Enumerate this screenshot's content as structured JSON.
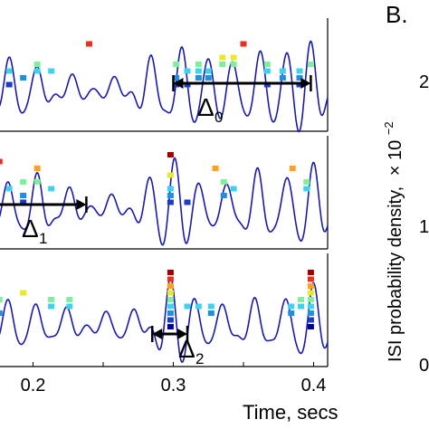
{
  "chart_data": {
    "type": "line",
    "panel_letter": "B.",
    "xlabel": "Time, secs",
    "ylabel": "ISI probability density,",
    "ylabel_multiplier": "× 10",
    "ylabel_exponent": "−2",
    "x_ticks": [
      "0.2",
      "0.3",
      "0.4"
    ],
    "right_y_ticks": [
      "2",
      "1",
      "0"
    ],
    "xlim": [
      0.17,
      0.41
    ],
    "colors": {
      "trace": "#1a1aa8",
      "arrow": "#000000",
      "frame": "#000000"
    },
    "marker_colormap": [
      "#00008f",
      "#1c3cc8",
      "#1f8fe0",
      "#3fd2f0",
      "#7ff09a",
      "#e6ea2c",
      "#ffa020",
      "#e8321c",
      "#a00000"
    ],
    "panels": [
      {
        "interval_label": "Δ",
        "interval_subscript": "0",
        "interval_range": [
          0.3,
          0.398
        ],
        "peak_times": [
          0.183,
          0.203,
          0.228,
          0.258,
          0.284,
          0.306,
          0.325,
          0.342,
          0.362,
          0.381,
          0.398
        ],
        "peak_amplitudes": [
          0.7,
          0.5,
          0.35,
          0.3,
          0.75,
          0.9,
          0.6,
          0.55,
          0.8,
          0.7,
          1.0
        ],
        "spike_clusters": [
          {
            "time": 0.172,
            "levels": [
              1,
              2,
              4,
              3
            ]
          },
          {
            "time": 0.183,
            "levels": [
              1,
              3
            ]
          },
          {
            "time": 0.193,
            "levels": [
              2
            ]
          },
          {
            "time": 0.203,
            "levels": [
              3,
              4
            ]
          },
          {
            "time": 0.213,
            "levels": [
              3
            ]
          },
          {
            "time": 0.24,
            "levels": [
              7
            ]
          },
          {
            "time": 0.302,
            "levels": [
              1,
              2,
              4
            ]
          },
          {
            "time": 0.31,
            "levels": [
              1,
              3
            ]
          },
          {
            "time": 0.318,
            "levels": [
              2,
              3,
              4
            ]
          },
          {
            "time": 0.325,
            "levels": [
              2,
              3
            ]
          },
          {
            "time": 0.335,
            "levels": [
              4,
              5
            ]
          },
          {
            "time": 0.343,
            "levels": [
              5,
              4
            ]
          },
          {
            "time": 0.35,
            "levels": [
              7
            ]
          },
          {
            "time": 0.367,
            "levels": [
              4,
              3,
              1
            ]
          },
          {
            "time": 0.378,
            "levels": [
              3,
              2
            ]
          },
          {
            "time": 0.39,
            "levels": [
              1,
              2,
              3
            ]
          },
          {
            "time": 0.398,
            "levels": [
              4
            ]
          }
        ]
      },
      {
        "interval_label": "Δ",
        "interval_subscript": "1",
        "interval_range": [
          0.17,
          0.238
        ],
        "peak_times": [
          0.182,
          0.203,
          0.226,
          0.256,
          0.283,
          0.301,
          0.318,
          0.338,
          0.36,
          0.381,
          0.4
        ],
        "peak_amplitudes": [
          0.55,
          0.75,
          0.45,
          0.3,
          0.6,
          1.0,
          0.45,
          0.5,
          0.85,
          0.6,
          0.95
        ],
        "spike_clusters": [
          {
            "time": 0.176,
            "levels": [
              7
            ]
          },
          {
            "time": 0.183,
            "levels": [
              3
            ]
          },
          {
            "time": 0.193,
            "levels": [
              4,
              2,
              1
            ]
          },
          {
            "time": 0.203,
            "levels": [
              6,
              4
            ]
          },
          {
            "time": 0.213,
            "levels": [
              3
            ]
          },
          {
            "time": 0.298,
            "levels": [
              8,
              5,
              3,
              2,
              1
            ]
          },
          {
            "time": 0.31,
            "levels": [
              1
            ]
          },
          {
            "time": 0.33,
            "levels": [
              6
            ]
          },
          {
            "time": 0.336,
            "levels": [
              4,
              2
            ]
          },
          {
            "time": 0.343,
            "levels": [
              3
            ]
          },
          {
            "time": 0.385,
            "levels": [
              6
            ]
          },
          {
            "time": 0.395,
            "levels": [
              4,
              3
            ]
          }
        ]
      },
      {
        "interval_label": "Δ",
        "interval_subscript": "2",
        "interval_range": [
          0.285,
          0.31
        ],
        "peak_times": [
          0.182,
          0.202,
          0.224,
          0.252,
          0.272,
          0.298,
          0.315,
          0.335,
          0.358,
          0.38,
          0.4
        ],
        "peak_amplitudes": [
          0.55,
          0.45,
          0.4,
          0.3,
          0.35,
          1.0,
          0.5,
          0.45,
          0.6,
          0.55,
          0.9
        ],
        "spike_clusters": [
          {
            "time": 0.176,
            "levels": [
              4,
              2
            ]
          },
          {
            "time": 0.193,
            "levels": [
              5
            ]
          },
          {
            "time": 0.213,
            "levels": [
              4,
              3
            ]
          },
          {
            "time": 0.226,
            "levels": [
              4,
              3
            ]
          },
          {
            "time": 0.298,
            "levels": [
              8,
              7,
              6,
              5,
              4,
              3,
              2,
              1,
              0
            ]
          },
          {
            "time": 0.31,
            "levels": [
              3
            ]
          },
          {
            "time": 0.318,
            "levels": [
              3
            ]
          },
          {
            "time": 0.327,
            "levels": [
              3,
              2
            ]
          },
          {
            "time": 0.384,
            "levels": [
              3,
              2
            ]
          },
          {
            "time": 0.391,
            "levels": [
              4,
              3
            ]
          },
          {
            "time": 0.398,
            "levels": [
              8,
              7,
              6,
              5,
              4,
              3,
              2,
              1,
              0
            ]
          }
        ]
      }
    ]
  }
}
